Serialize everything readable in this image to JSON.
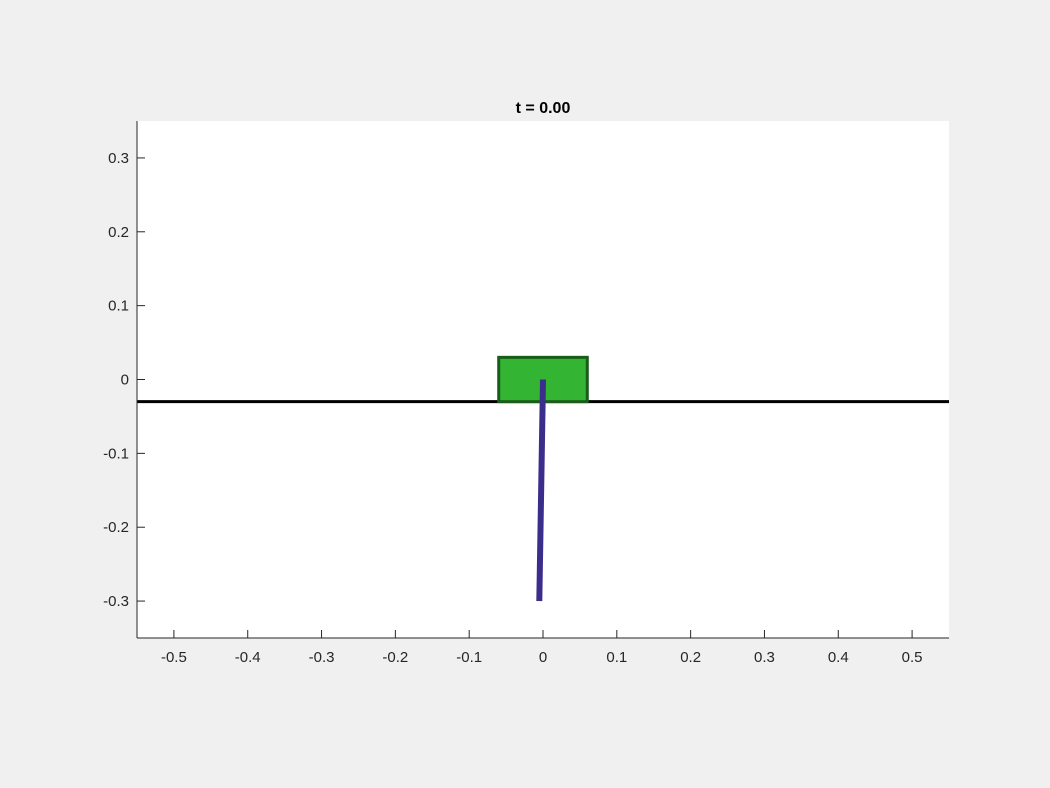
{
  "chart_data": {
    "type": "line",
    "title": "t = 0.00",
    "xlabel": "",
    "ylabel": "",
    "xlim": [
      -0.55,
      0.55
    ],
    "ylim": [
      -0.35,
      0.35
    ],
    "xticks": [
      -0.5,
      -0.4,
      -0.3,
      -0.2,
      -0.1,
      0,
      0.1,
      0.2,
      0.3,
      0.4,
      0.5
    ],
    "xtick_labels": [
      "-0.5",
      "-0.4",
      "-0.3",
      "-0.2",
      "-0.1",
      "0",
      "0.1",
      "0.2",
      "0.3",
      "0.4",
      "0.5"
    ],
    "yticks": [
      0.3,
      0.2,
      0.1,
      0,
      -0.1,
      -0.2,
      -0.3
    ],
    "ytick_labels": [
      "0.3",
      "0.2",
      "0.1",
      "0",
      "-0.1",
      "-0.2",
      "-0.3"
    ],
    "grid": false,
    "legend": "none",
    "track": {
      "y": -0.03,
      "x": [
        -0.55,
        0.55
      ],
      "color": "#000000"
    },
    "cart": {
      "x": [
        -0.06,
        0.06
      ],
      "y": [
        -0.03,
        0.03
      ],
      "fill": "#33b533",
      "edge": "#1a5c1a"
    },
    "pendulum": {
      "x": [
        0,
        -0.005
      ],
      "y": [
        0,
        -0.3
      ],
      "color": "#3b2d8c"
    },
    "colors": {
      "figure_bg": "#f0f0f0",
      "axes_bg": "#ffffff",
      "axis": "#262626"
    }
  }
}
